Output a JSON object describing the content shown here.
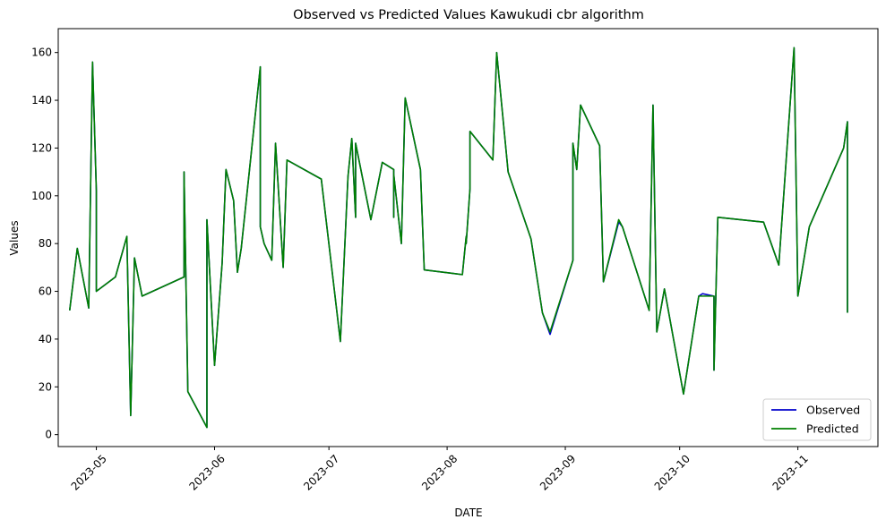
{
  "chart_data": {
    "type": "line",
    "title": "Observed vs Predicted Values Kawukudi cbr algorithm",
    "xlabel": "DATE",
    "ylabel": "Values",
    "xlim": [
      "2023-04-21",
      "2023-11-22"
    ],
    "ylim": [
      -5,
      170
    ],
    "x_ticks": [
      "2023-05",
      "2023-06",
      "2023-07",
      "2023-08",
      "2023-09",
      "2023-10",
      "2023-11"
    ],
    "y_ticks": [
      0,
      20,
      40,
      60,
      80,
      100,
      120,
      140,
      160
    ],
    "grid": false,
    "legend_position": "lower right",
    "x": [
      "2023-04-24",
      "2023-04-26",
      "2023-04-29",
      "2023-04-30",
      "2023-05-01",
      "2023-05-01",
      "2023-05-06",
      "2023-05-09",
      "2023-05-10",
      "2023-05-11",
      "2023-05-13",
      "2023-05-24",
      "2023-05-24",
      "2023-05-25",
      "2023-05-30",
      "2023-05-30",
      "2023-06-01",
      "2023-06-03",
      "2023-06-04",
      "2023-06-06",
      "2023-06-07",
      "2023-06-08",
      "2023-06-13",
      "2023-06-13",
      "2023-06-14",
      "2023-06-16",
      "2023-06-17",
      "2023-06-19",
      "2023-06-20",
      "2023-06-29",
      "2023-07-04",
      "2023-07-06",
      "2023-07-07",
      "2023-07-08",
      "2023-07-08",
      "2023-07-12",
      "2023-07-15",
      "2023-07-18",
      "2023-07-18",
      "2023-07-18",
      "2023-07-20",
      "2023-07-21",
      "2023-07-25",
      "2023-07-26",
      "2023-08-05",
      "2023-08-06",
      "2023-08-06",
      "2023-08-07",
      "2023-08-07",
      "2023-08-13",
      "2023-08-14",
      "2023-08-17",
      "2023-08-23",
      "2023-08-26",
      "2023-08-28",
      "2023-09-03",
      "2023-09-03",
      "2023-09-04",
      "2023-09-05",
      "2023-09-10",
      "2023-09-11",
      "2023-09-15",
      "2023-09-16",
      "2023-09-23",
      "2023-09-24",
      "2023-09-25",
      "2023-09-27",
      "2023-10-02",
      "2023-10-06",
      "2023-10-07",
      "2023-10-10",
      "2023-10-10",
      "2023-10-11",
      "2023-10-23",
      "2023-10-27",
      "2023-10-31",
      "2023-11-01",
      "2023-11-04",
      "2023-11-13",
      "2023-11-14",
      "2023-11-14"
    ],
    "series": [
      {
        "name": "Observed",
        "color": "#0000cc",
        "values": [
          52,
          78,
          53,
          156,
          102,
          60,
          66,
          83,
          8,
          74,
          58,
          66,
          110,
          18,
          3,
          90,
          29,
          72,
          111,
          98,
          68,
          78,
          154,
          87,
          80,
          73,
          122,
          70,
          115,
          107,
          39,
          108,
          124,
          91,
          122,
          90,
          114,
          111,
          91,
          109,
          80,
          141,
          111,
          69,
          67,
          83,
          80,
          103,
          127,
          115,
          160,
          110,
          82,
          51,
          42,
          73,
          122,
          111,
          138,
          121,
          64,
          89,
          87,
          52,
          138,
          43,
          61,
          17,
          58,
          59,
          58,
          27,
          91,
          89,
          71,
          162,
          58,
          87,
          120,
          131,
          51
        ]
      },
      {
        "name": "Predicted",
        "color": "#008000",
        "values": [
          52,
          78,
          53,
          156,
          102,
          60,
          66,
          83,
          8,
          74,
          58,
          66,
          110,
          18,
          3,
          90,
          29,
          72,
          111,
          98,
          68,
          78,
          154,
          87,
          80,
          73,
          122,
          70,
          115,
          107,
          39,
          108,
          124,
          91,
          122,
          90,
          114,
          111,
          91,
          109,
          80,
          141,
          111,
          69,
          67,
          83,
          80,
          103,
          127,
          115,
          160,
          110,
          82,
          51,
          43,
          73,
          122,
          111,
          138,
          121,
          64,
          90,
          87,
          52,
          138,
          43,
          61,
          17,
          58,
          58,
          58,
          27,
          91,
          89,
          71,
          162,
          58,
          87,
          120,
          131,
          51
        ]
      }
    ]
  }
}
